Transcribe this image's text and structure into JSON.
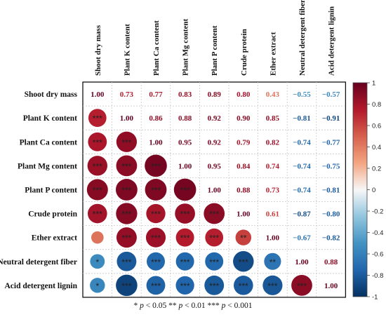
{
  "chart_data": {
    "type": "heatmap",
    "variables": [
      "Shoot dry mass",
      "Plant K content",
      "Plant Ca content",
      "Plant Mg content",
      "Plant P content",
      "Crude protein",
      "Ether extract",
      "Neutral detergent fiber",
      "Acid detergent lignin"
    ],
    "matrix": [
      [
        1.0,
        0.73,
        0.77,
        0.83,
        0.89,
        0.8,
        0.43,
        -0.55,
        -0.57
      ],
      [
        0.73,
        1.0,
        0.86,
        0.88,
        0.92,
        0.9,
        0.85,
        -0.81,
        -0.91
      ],
      [
        0.77,
        0.86,
        1.0,
        0.95,
        0.92,
        0.79,
        0.82,
        -0.74,
        -0.77
      ],
      [
        0.83,
        0.88,
        0.95,
        1.0,
        0.95,
        0.84,
        0.74,
        -0.74,
        -0.75
      ],
      [
        0.89,
        0.92,
        0.92,
        0.95,
        1.0,
        0.88,
        0.73,
        -0.74,
        -0.81
      ],
      [
        0.8,
        0.9,
        0.79,
        0.84,
        0.88,
        1.0,
        0.61,
        -0.87,
        -0.8
      ],
      [
        0.43,
        0.85,
        0.82,
        0.74,
        0.73,
        0.61,
        1.0,
        -0.67,
        -0.82
      ],
      [
        -0.55,
        -0.81,
        -0.74,
        -0.74,
        -0.74,
        -0.87,
        -0.67,
        1.0,
        0.88
      ],
      [
        -0.57,
        -0.91,
        -0.77,
        -0.75,
        -0.81,
        -0.8,
        -0.82,
        0.88,
        1.0
      ]
    ],
    "significance": [
      [
        "",
        "",
        "",
        "",
        "",
        "",
        "",
        "",
        ""
      ],
      [
        "***",
        "",
        "",
        "",
        "",
        "",
        "",
        "",
        ""
      ],
      [
        "***",
        "***",
        "",
        "",
        "",
        "",
        "",
        "",
        ""
      ],
      [
        "***",
        "***",
        "***",
        "",
        "",
        "",
        "",
        "",
        ""
      ],
      [
        "***",
        "***",
        "***",
        "***",
        "",
        "",
        "",
        "",
        ""
      ],
      [
        "***",
        "***",
        "***",
        "***",
        "***",
        "",
        "",
        "",
        ""
      ],
      [
        "",
        "***",
        "***",
        "***",
        "***",
        "**",
        "",
        "",
        ""
      ],
      [
        "*",
        "***",
        "***",
        "***",
        "***",
        "***",
        "**",
        "",
        ""
      ],
      [
        "*",
        "***",
        "***",
        "***",
        "***",
        "***",
        "***",
        "***",
        ""
      ]
    ],
    "colorbar": {
      "ticks": [
        "1",
        "0.8",
        "0.6",
        "0.4",
        "0.2",
        "0",
        "-0.2",
        "-0.4",
        "-0.6",
        "-0.8",
        "-1"
      ],
      "range": [
        -1,
        1
      ]
    },
    "colors": {
      "negative": "#053061",
      "neutral": "#f7f7f7",
      "positive": "#67001f"
    }
  },
  "footnote": {
    "p1": "* ",
    "p1_var": "p",
    "p1_text": " < 0.05  ** ",
    "p2_var": "p",
    "p2_text": " < 0.01  *** ",
    "p3_var": "p",
    "p3_text": " < 0.001"
  }
}
